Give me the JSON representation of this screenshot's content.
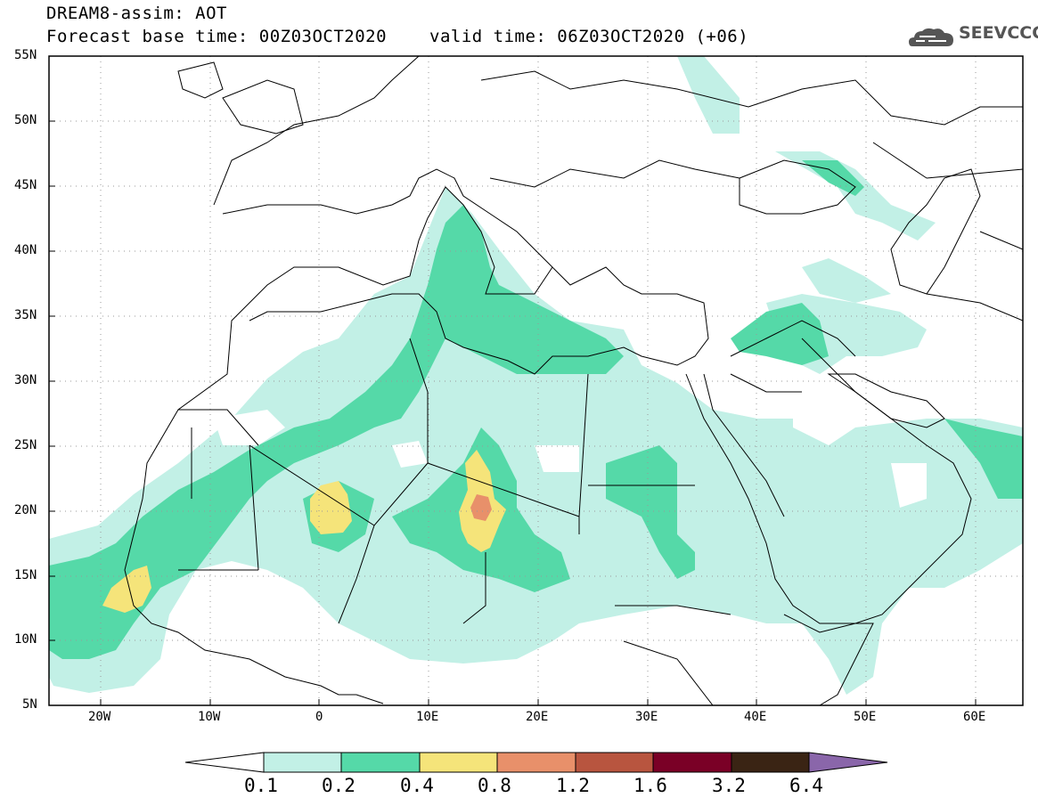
{
  "header": {
    "title": "DREAM8-assim: AOT",
    "base_time": "Forecast base time: 00Z03OCT2020",
    "valid_time": "valid time: 06Z03OCT2020 (+06)",
    "logo_text": "SEEVCCC"
  },
  "map": {
    "lat_labels": [
      "55N",
      "50N",
      "45N",
      "40N",
      "35N",
      "30N",
      "25N",
      "20N",
      "15N",
      "10N",
      "5N"
    ],
    "lon_labels": [
      "20W",
      "10W",
      "0",
      "10E",
      "20E",
      "30E",
      "40E",
      "50E",
      "60E"
    ]
  },
  "legend": {
    "levels": [
      "0.1",
      "0.2",
      "0.4",
      "0.8",
      "1.2",
      "1.6",
      "3.2",
      "6.4"
    ],
    "colors": [
      "#ffffff",
      "#c2f0e6",
      "#55d9a8",
      "#f5e47a",
      "#e8906a",
      "#b8553f",
      "#7a0026",
      "#3a2414",
      "#8a66aa"
    ]
  }
}
